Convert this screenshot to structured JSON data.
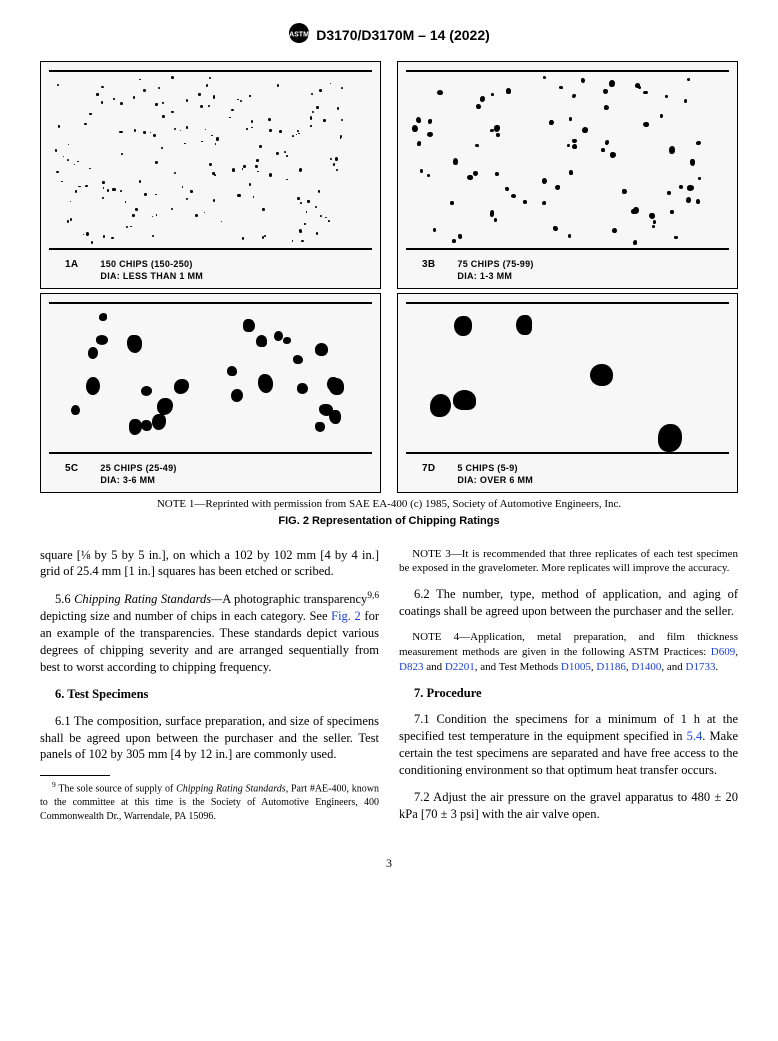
{
  "header": {
    "designation": "D3170/D3170M – 14 (2022)"
  },
  "figure": {
    "note_label": "NOTE 1—",
    "note_text": "Reprinted with permission from SAE EA-400 (c) 1985, Society of Automotive Engineers, Inc.",
    "title": "FIG. 2 Representation of Chipping Ratings",
    "panels": [
      {
        "id": "1A",
        "line1": "150 CHIPS (150-250)",
        "line2": "DIA: LESS THAN 1 MM",
        "dot_count": 160,
        "dot_min": 1.2,
        "dot_max": 3.2,
        "height": "tall"
      },
      {
        "id": "3B",
        "line1": "75 CHIPS (75-99)",
        "line2": "DIA: 1-3 MM",
        "dot_count": 78,
        "dot_min": 3.0,
        "dot_max": 6.5,
        "height": "tall"
      },
      {
        "id": "5C",
        "line1": "25 CHIPS (25-49)",
        "line2": "DIA: 3-6 MM",
        "dot_count": 28,
        "dot_min": 8,
        "dot_max": 16,
        "height": "short"
      },
      {
        "id": "7D",
        "line1": "5 CHIPS (5-9)",
        "line2": "DIA: OVER 6 MM",
        "dot_count": 6,
        "dot_min": 16,
        "dot_max": 26,
        "height": "short"
      }
    ]
  },
  "body": {
    "p_lead": "square [⅛ by 5 by 5 in.], on which a 102 by 102 mm [4 by 4 in.] grid of 25.4 mm [1 in.] squares has been etched or scribed.",
    "p56_num": "5.6 ",
    "p56_head": "Chipping Rating Standards—",
    "p56_body1": "A photographic transparency",
    "p56_sup": "9,6",
    "p56_body2": " depicting size and number of chips in each category. See ",
    "p56_link": "Fig. 2",
    "p56_body3": " for an example of the transparencies. These standards depict various degrees of chipping severity and are arranged sequentially from best to worst according to chipping frequency.",
    "s6_head": "6. Test Specimens",
    "p61": "6.1 The composition, surface preparation, and size of specimens shall be agreed upon between the purchaser and the seller. Test panels of 102 by 305 mm [4 by 12 in.] are commonly used.",
    "fn9_sup": "9",
    "fn9_text": " The sole source of supply of ",
    "fn9_ital": "Chipping Rating Standards",
    "fn9_text2": ", Part #AE-400, known to the committee at this time is the Society of Automotive Engineers, 400 Commonwealth Dr., Warrendale, PA 15096.",
    "note3_label": "NOTE 3—",
    "note3_text": "It is recommended that three replicates of each test specimen be exposed in the gravelometer. More replicates will improve the accuracy.",
    "p62": "6.2 The number, type, method of application, and aging of coatings shall be agreed upon between the purchaser and the seller.",
    "note4_label": "NOTE 4—",
    "note4_text1": "Application, metal preparation, and film thickness measurement methods are given in the following ASTM Practices: ",
    "note4_links": [
      "D609",
      "D823",
      "D2201",
      "D1005",
      "D1186",
      "D1400",
      "D1733"
    ],
    "note4_mid": " and ",
    "note4_tm": ", and Test Methods ",
    "s7_head": "7. Procedure",
    "p71a": "7.1 Condition the specimens for a minimum of 1 h at the specified test temperature in the equipment specified in ",
    "p71_link": "5.4",
    "p71b": ". Make certain the test specimens are separated and have free access to the conditioning environment so that optimum heat transfer occurs.",
    "p72": "7.2 Adjust the air pressure on the gravel apparatus to 480 ± 20 kPa [70 ± 3 psi] with the air valve open."
  },
  "pagenum": "3",
  "style": {
    "link_color": "#1a3fcf",
    "panel_bg": "#f7f7f7",
    "body_font_size": 12.5
  }
}
